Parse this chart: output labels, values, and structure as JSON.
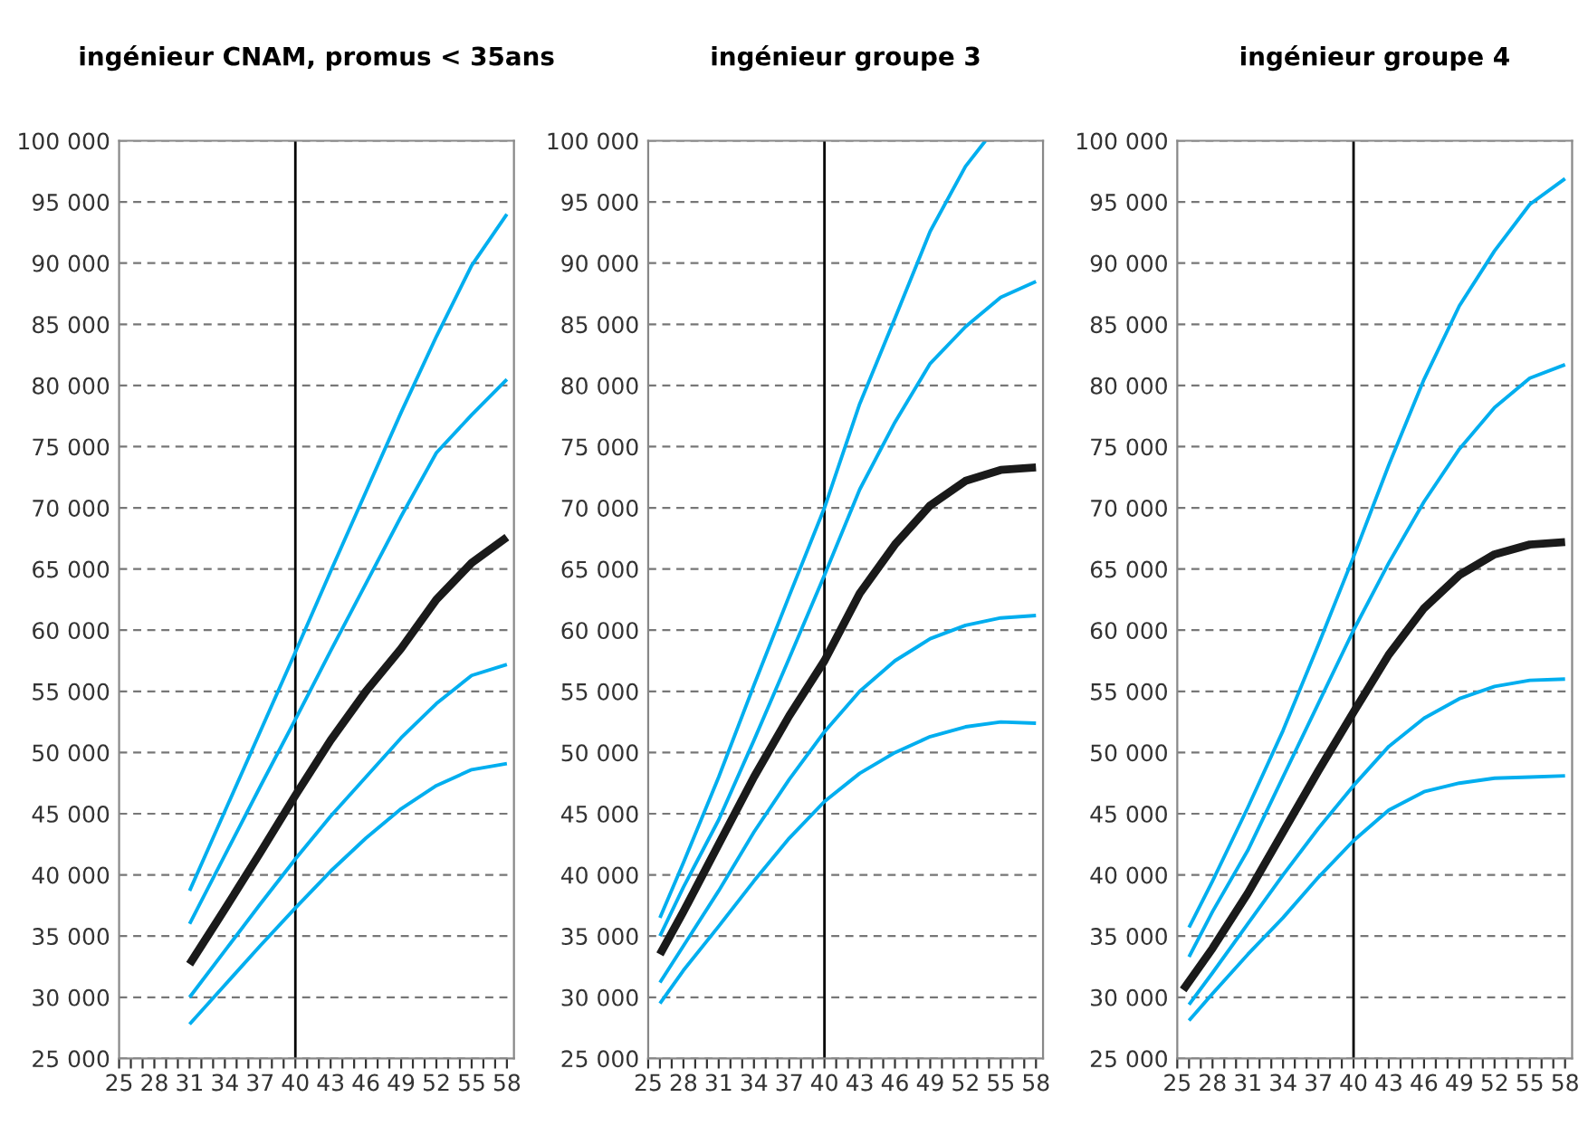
{
  "chart_data": [
    {
      "type": "line",
      "title": "ingénieur CNAM, promus < 35ans",
      "xlim": [
        25,
        58.6
      ],
      "ylim": [
        25000,
        100000
      ],
      "grid": "y",
      "marker": "none",
      "line_style": "solid",
      "xticks": [
        25,
        {
          "value": 26,
          "label": null
        },
        {
          "value": 27,
          "label": null
        },
        28,
        {
          "value": 29,
          "label": null
        },
        {
          "value": 30,
          "label": null
        },
        31,
        {
          "value": 32,
          "label": null
        },
        {
          "value": 33,
          "label": null
        },
        34,
        {
          "value": 35,
          "label": null
        },
        {
          "value": 36,
          "label": null
        },
        37,
        {
          "value": 38,
          "label": null
        },
        {
          "value": 39,
          "label": null
        },
        40,
        {
          "value": 41,
          "label": null
        },
        {
          "value": 42,
          "label": null
        },
        43,
        {
          "value": 44,
          "label": null
        },
        {
          "value": 45,
          "label": null
        },
        46,
        {
          "value": 47,
          "label": null
        },
        {
          "value": 48,
          "label": null
        },
        49,
        {
          "value": 50,
          "label": null
        },
        {
          "value": 51,
          "label": null
        },
        52,
        {
          "value": 53,
          "label": null
        },
        {
          "value": 54,
          "label": null
        },
        55,
        {
          "value": 56,
          "label": null
        },
        {
          "value": 57,
          "label": null
        },
        58
      ],
      "yticks": [
        {
          "value": 25000,
          "label": "25 000"
        },
        {
          "value": 30000,
          "label": "30 000"
        },
        {
          "value": 35000,
          "label": "35 000"
        },
        {
          "value": 40000,
          "label": "40 000"
        },
        {
          "value": 45000,
          "label": "45 000"
        },
        {
          "value": 50000,
          "label": "50 000"
        },
        {
          "value": 55000,
          "label": "55 000"
        },
        {
          "value": 60000,
          "label": "60 000"
        },
        {
          "value": 65000,
          "label": "65 000"
        },
        {
          "value": 70000,
          "label": "70 000"
        },
        {
          "value": 75000,
          "label": "75 000"
        },
        {
          "value": 80000,
          "label": "80 000"
        },
        {
          "value": 85000,
          "label": "85 000"
        },
        {
          "value": 90000,
          "label": "90 000"
        },
        {
          "value": 95000,
          "label": "95 000"
        },
        {
          "value": 100000,
          "label": "100 000"
        }
      ],
      "ref_lines": [
        {
          "axis": "x",
          "value": 40,
          "color": "#000000"
        }
      ],
      "series": [
        {
          "color": "#00aeef",
          "x": [
            31,
            34,
            37,
            40,
            43,
            46,
            49,
            52,
            55,
            58
          ],
          "values": [
            38700,
            45200,
            51700,
            58200,
            64800,
            71300,
            77800,
            84000,
            89800,
            94000
          ]
        },
        {
          "color": "#00aeef",
          "x": [
            31,
            34,
            37,
            40,
            43,
            46,
            49,
            52,
            55,
            58
          ],
          "values": [
            36000,
            41600,
            47200,
            52700,
            58300,
            63800,
            69300,
            74500,
            77600,
            80500
          ]
        },
        {
          "color": "#1a1a1a",
          "x": [
            31,
            34,
            37,
            40,
            43,
            46,
            49,
            52,
            55,
            58
          ],
          "values": [
            32700,
            37200,
            41800,
            46500,
            51000,
            55000,
            58500,
            62500,
            65500,
            67600
          ]
        },
        {
          "color": "#00aeef",
          "x": [
            31,
            34,
            37,
            40,
            43,
            46,
            49,
            52,
            55,
            58
          ],
          "values": [
            30000,
            33800,
            37600,
            41300,
            44800,
            48000,
            51200,
            54000,
            56300,
            57200
          ]
        },
        {
          "color": "#00aeef",
          "x": [
            31,
            34,
            37,
            40,
            43,
            46,
            49,
            52,
            55,
            58
          ],
          "values": [
            27800,
            31000,
            34200,
            37300,
            40300,
            43000,
            45400,
            47300,
            48600,
            49100
          ]
        }
      ]
    },
    {
      "type": "line",
      "title": "ingénieur groupe 3",
      "xlim": [
        25,
        58.6
      ],
      "ylim": [
        25000,
        100000
      ],
      "grid": "y",
      "marker": "none",
      "line_style": "solid",
      "xticks": [
        25,
        {
          "value": 26,
          "label": null
        },
        {
          "value": 27,
          "label": null
        },
        28,
        {
          "value": 29,
          "label": null
        },
        {
          "value": 30,
          "label": null
        },
        31,
        {
          "value": 32,
          "label": null
        },
        {
          "value": 33,
          "label": null
        },
        34,
        {
          "value": 35,
          "label": null
        },
        {
          "value": 36,
          "label": null
        },
        37,
        {
          "value": 38,
          "label": null
        },
        {
          "value": 39,
          "label": null
        },
        40,
        {
          "value": 41,
          "label": null
        },
        {
          "value": 42,
          "label": null
        },
        43,
        {
          "value": 44,
          "label": null
        },
        {
          "value": 45,
          "label": null
        },
        46,
        {
          "value": 47,
          "label": null
        },
        {
          "value": 48,
          "label": null
        },
        49,
        {
          "value": 50,
          "label": null
        },
        {
          "value": 51,
          "label": null
        },
        52,
        {
          "value": 53,
          "label": null
        },
        {
          "value": 54,
          "label": null
        },
        55,
        {
          "value": 56,
          "label": null
        },
        {
          "value": 57,
          "label": null
        },
        58
      ],
      "yticks": [
        {
          "value": 25000,
          "label": "25 000"
        },
        {
          "value": 30000,
          "label": "30 000"
        },
        {
          "value": 35000,
          "label": "35 000"
        },
        {
          "value": 40000,
          "label": "40 000"
        },
        {
          "value": 45000,
          "label": "45 000"
        },
        {
          "value": 50000,
          "label": "50 000"
        },
        {
          "value": 55000,
          "label": "55 000"
        },
        {
          "value": 60000,
          "label": "60 000"
        },
        {
          "value": 65000,
          "label": "65 000"
        },
        {
          "value": 70000,
          "label": "70 000"
        },
        {
          "value": 75000,
          "label": "75 000"
        },
        {
          "value": 80000,
          "label": "80 000"
        },
        {
          "value": 85000,
          "label": "85 000"
        },
        {
          "value": 90000,
          "label": "90 000"
        },
        {
          "value": 95000,
          "label": "95 000"
        },
        {
          "value": 100000,
          "label": "100 000"
        }
      ],
      "ref_lines": [
        {
          "axis": "x",
          "value": 40,
          "color": "#000000"
        }
      ],
      "series": [
        {
          "color": "#00aeef",
          "x": [
            26,
            28,
            31,
            34,
            37,
            40,
            43,
            46,
            49,
            52,
            53.7
          ],
          "values": [
            36500,
            41000,
            48000,
            55500,
            62800,
            70000,
            78500,
            85500,
            92600,
            97900,
            100000
          ]
        },
        {
          "color": "#00aeef",
          "x": [
            26,
            28,
            31,
            34,
            37,
            40,
            43,
            46,
            49,
            52,
            55,
            58
          ],
          "values": [
            35000,
            39000,
            44500,
            51000,
            57700,
            64500,
            71500,
            77000,
            81800,
            84800,
            87200,
            88500
          ]
        },
        {
          "color": "#1a1a1a",
          "x": [
            26,
            28,
            31,
            34,
            37,
            40,
            43,
            46,
            49,
            52,
            55,
            58
          ],
          "values": [
            33500,
            37000,
            42500,
            48000,
            53000,
            57500,
            63000,
            67000,
            70200,
            72200,
            73100,
            73300
          ]
        },
        {
          "color": "#00aeef",
          "x": [
            26,
            28,
            31,
            34,
            37,
            40,
            43,
            46,
            49,
            52,
            55,
            58
          ],
          "values": [
            31200,
            34200,
            38700,
            43500,
            47800,
            51700,
            55000,
            57500,
            59300,
            60400,
            61000,
            61200
          ]
        },
        {
          "color": "#00aeef",
          "x": [
            26,
            28,
            31,
            34,
            37,
            40,
            43,
            46,
            49,
            52,
            55,
            58
          ],
          "values": [
            29500,
            32200,
            35800,
            39500,
            43000,
            46000,
            48300,
            50000,
            51300,
            52100,
            52500,
            52400
          ]
        }
      ]
    },
    {
      "type": "line",
      "title": "ingénieur groupe 4",
      "xlim": [
        25,
        58.6
      ],
      "ylim": [
        25000,
        100000
      ],
      "grid": "y",
      "marker": "none",
      "line_style": "solid",
      "xticks": [
        25,
        {
          "value": 26,
          "label": null
        },
        {
          "value": 27,
          "label": null
        },
        28,
        {
          "value": 29,
          "label": null
        },
        {
          "value": 30,
          "label": null
        },
        31,
        {
          "value": 32,
          "label": null
        },
        {
          "value": 33,
          "label": null
        },
        34,
        {
          "value": 35,
          "label": null
        },
        {
          "value": 36,
          "label": null
        },
        37,
        {
          "value": 38,
          "label": null
        },
        {
          "value": 39,
          "label": null
        },
        40,
        {
          "value": 41,
          "label": null
        },
        {
          "value": 42,
          "label": null
        },
        43,
        {
          "value": 44,
          "label": null
        },
        {
          "value": 45,
          "label": null
        },
        46,
        {
          "value": 47,
          "label": null
        },
        {
          "value": 48,
          "label": null
        },
        49,
        {
          "value": 50,
          "label": null
        },
        {
          "value": 51,
          "label": null
        },
        52,
        {
          "value": 53,
          "label": null
        },
        {
          "value": 54,
          "label": null
        },
        55,
        {
          "value": 56,
          "label": null
        },
        {
          "value": 57,
          "label": null
        },
        58
      ],
      "yticks": [
        {
          "value": 25000,
          "label": "25 000"
        },
        {
          "value": 30000,
          "label": "30 000"
        },
        {
          "value": 35000,
          "label": "35 000"
        },
        {
          "value": 40000,
          "label": "40 000"
        },
        {
          "value": 45000,
          "label": "45 000"
        },
        {
          "value": 50000,
          "label": "50 000"
        },
        {
          "value": 55000,
          "label": "55 000"
        },
        {
          "value": 60000,
          "label": "60 000"
        },
        {
          "value": 65000,
          "label": "65 000"
        },
        {
          "value": 70000,
          "label": "70 000"
        },
        {
          "value": 75000,
          "label": "75 000"
        },
        {
          "value": 80000,
          "label": "80 000"
        },
        {
          "value": 85000,
          "label": "85 000"
        },
        {
          "value": 90000,
          "label": "90 000"
        },
        {
          "value": 95000,
          "label": "95 000"
        },
        {
          "value": 100000,
          "label": "100 000"
        }
      ],
      "ref_lines": [
        {
          "axis": "x",
          "value": 40,
          "color": "#000000"
        }
      ],
      "series": [
        {
          "color": "#00aeef",
          "x": [
            26,
            28,
            31,
            34,
            37,
            40,
            43,
            46,
            49,
            52,
            55,
            58
          ],
          "values": [
            35700,
            39500,
            45500,
            51800,
            58800,
            66000,
            73500,
            80500,
            86500,
            91000,
            94800,
            96900
          ]
        },
        {
          "color": "#00aeef",
          "x": [
            26,
            28,
            31,
            34,
            37,
            40,
            43,
            46,
            49,
            52,
            55,
            58
          ],
          "values": [
            33300,
            37000,
            42000,
            48000,
            54000,
            60000,
            65500,
            70500,
            74800,
            78200,
            80600,
            81700
          ]
        },
        {
          "color": "#1a1a1a",
          "x": [
            25.5,
            28,
            31,
            34,
            37,
            40,
            43,
            46,
            49,
            52,
            55,
            58
          ],
          "values": [
            30600,
            34000,
            38500,
            43500,
            48500,
            53300,
            58000,
            61800,
            64500,
            66200,
            67000,
            67200
          ]
        },
        {
          "color": "#00aeef",
          "x": [
            26,
            28,
            31,
            34,
            37,
            40,
            43,
            46,
            49,
            52,
            55,
            58
          ],
          "values": [
            29400,
            32000,
            36000,
            40000,
            43800,
            47300,
            50500,
            52800,
            54400,
            55400,
            55900,
            56000
          ]
        },
        {
          "color": "#00aeef",
          "x": [
            26,
            28,
            31,
            34,
            37,
            40,
            43,
            46,
            49,
            52,
            55,
            58
          ],
          "values": [
            28100,
            30300,
            33500,
            36500,
            39800,
            42800,
            45300,
            46800,
            47500,
            47900,
            48000,
            48100
          ]
        }
      ]
    }
  ]
}
